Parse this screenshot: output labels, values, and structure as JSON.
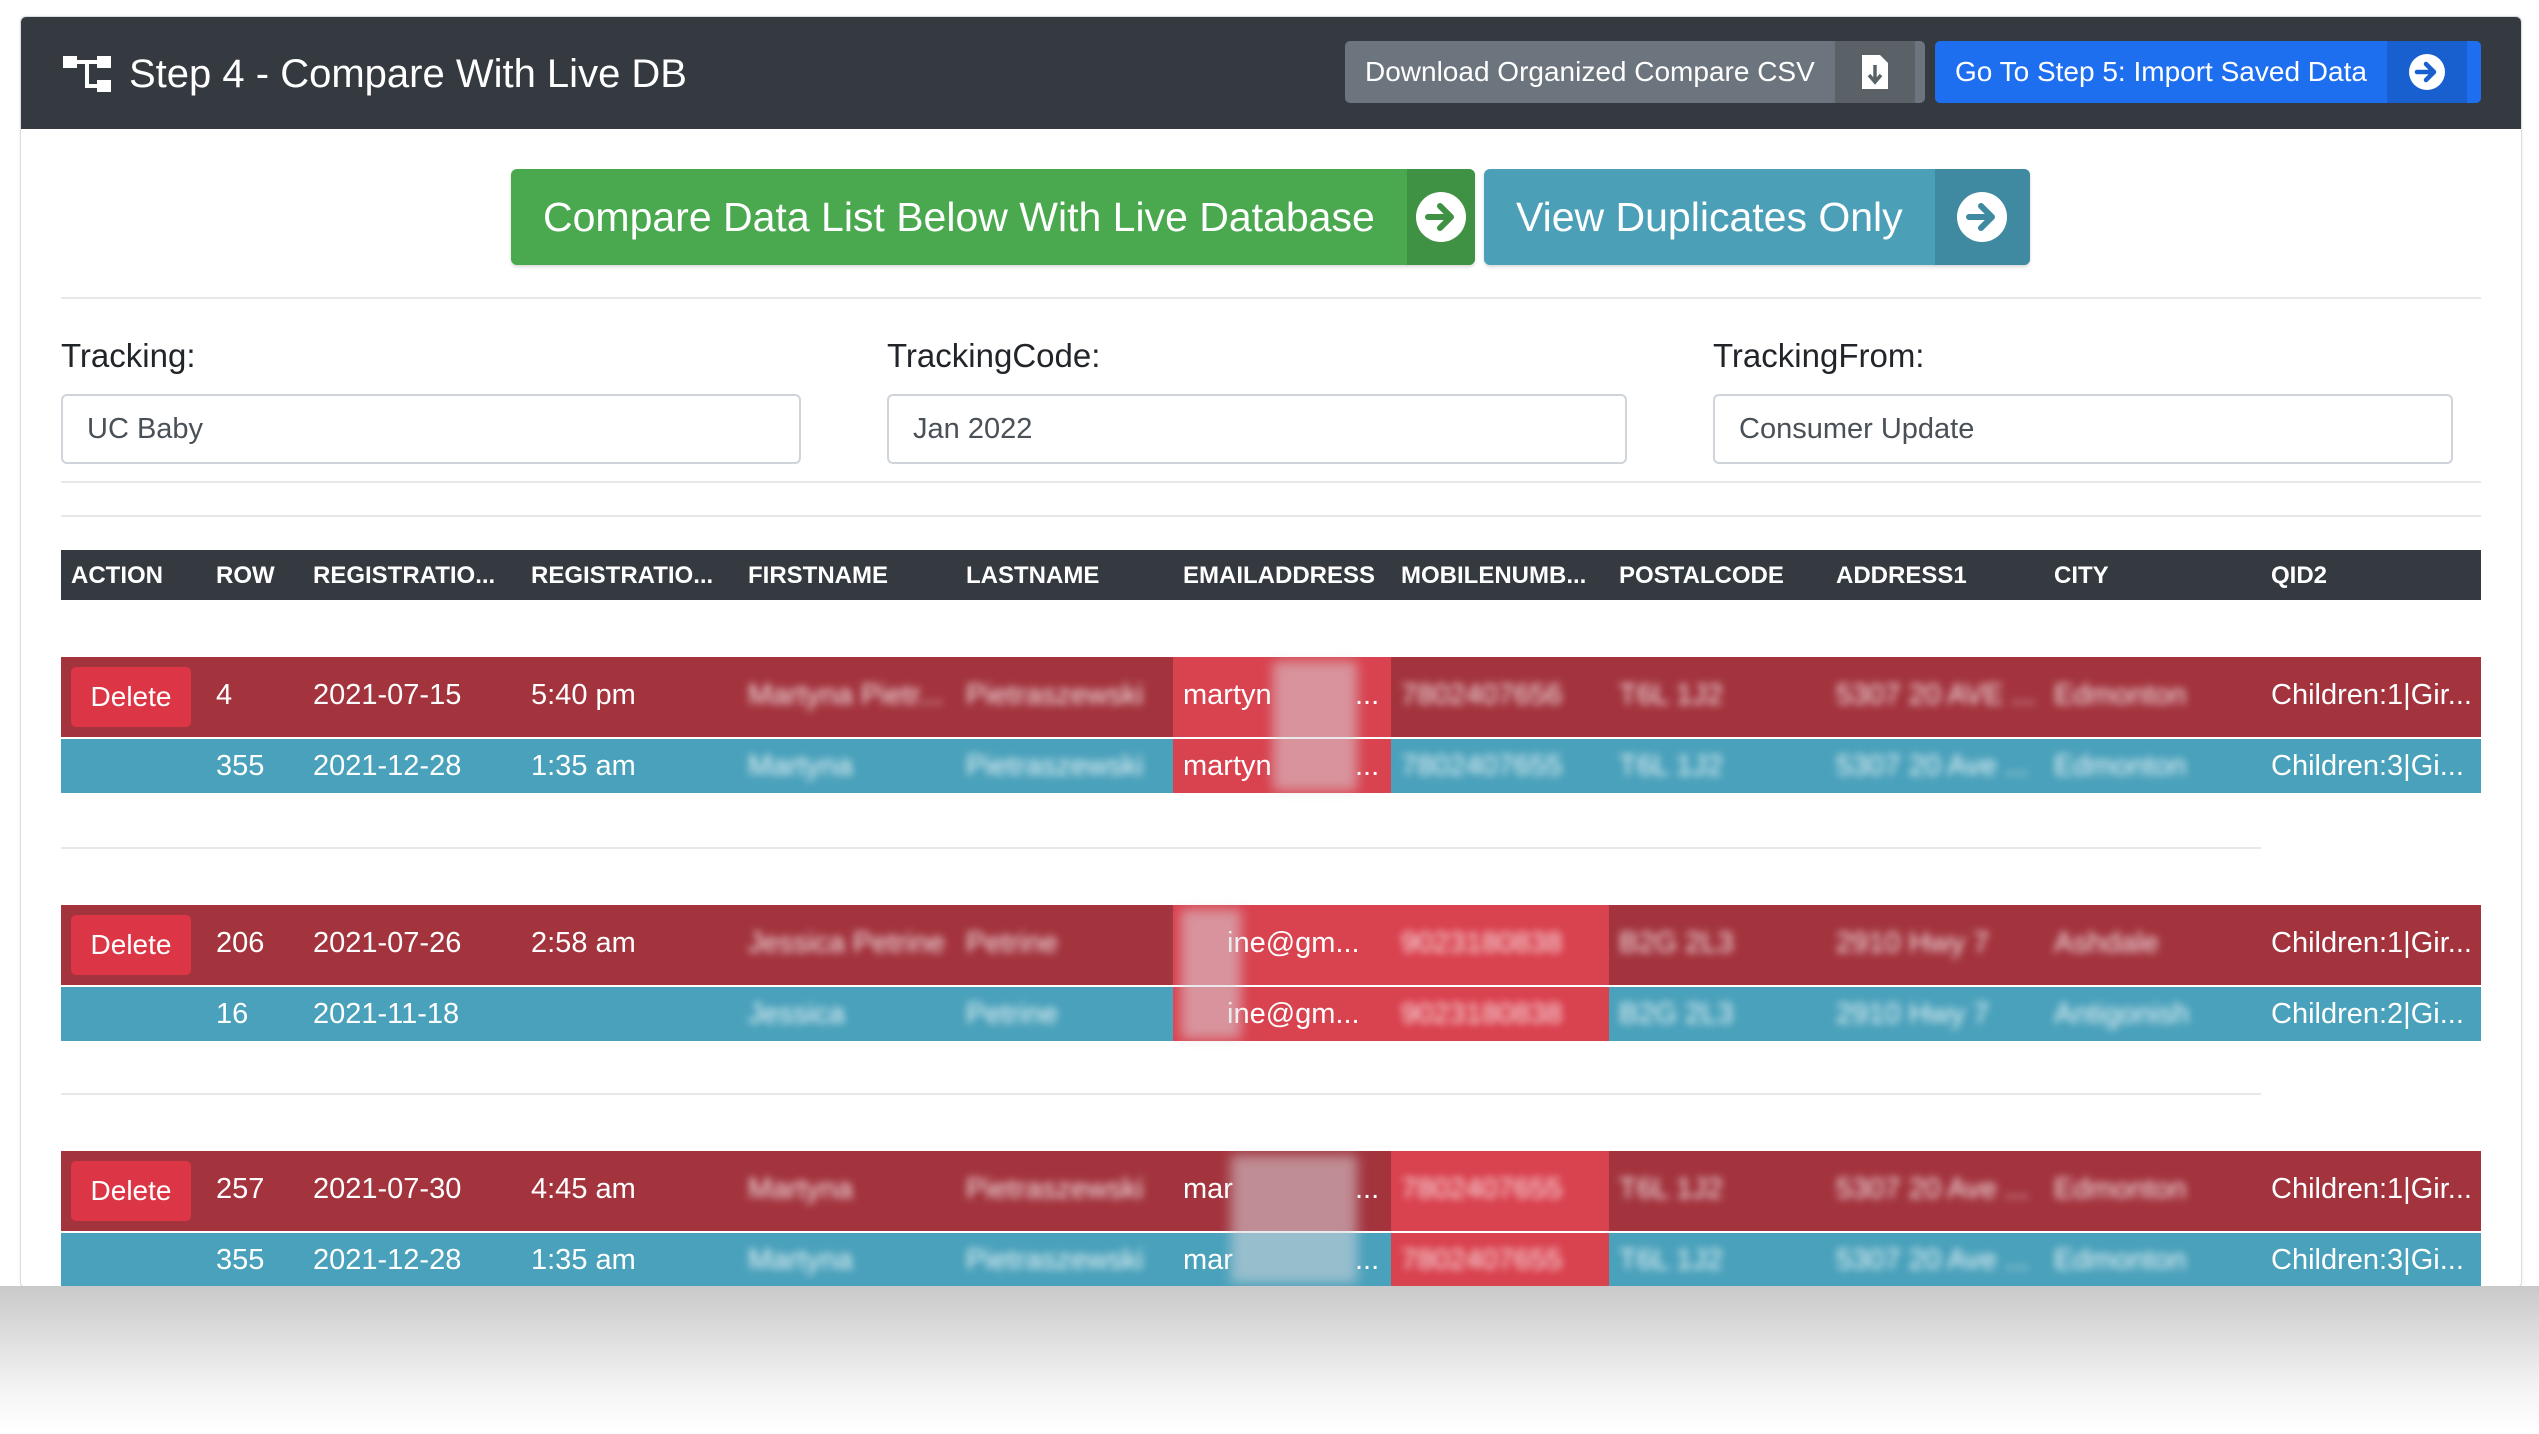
{
  "header": {
    "title": "Step 4 - Compare With Live DB",
    "csv_button": "Download Organized Compare CSV",
    "step5_button": "Go To Step 5: Import Saved Data"
  },
  "actions": {
    "compare_button": "Compare Data List Below With Live Database",
    "duplicates_button": "View Duplicates Only"
  },
  "fields": {
    "tracking_label": "Tracking:",
    "tracking_value": "UC Baby",
    "tracking_code_label": "TrackingCode:",
    "tracking_code_value": "Jan 2022",
    "tracking_from_label": "TrackingFrom:",
    "tracking_from_value": "Consumer Update"
  },
  "table": {
    "columns": [
      "ACTION",
      "ROW",
      "REGISTRATIO...",
      "REGISTRATIO...",
      "FIRSTNAME",
      "LASTNAME",
      "EMAILADDRESS",
      "MOBILENUMB...",
      "POSTALCODE",
      "ADDRESS1",
      "CITY",
      "QID2"
    ],
    "delete_label": "Delete",
    "groups": [
      {
        "primary": {
          "row": "4",
          "date": "2021-07-15",
          "time": "5:40 pm",
          "first": "Martyna Pietr...",
          "last": "Pietraszewski",
          "email": "martyn",
          "email_end": "...",
          "mobile": "7802407656",
          "postal": "T6L 1J2",
          "address": "5307 20 AVE ...",
          "city": "Edmonton",
          "qid2": "Children:1|Gir..."
        },
        "duplicate": {
          "row": "355",
          "date": "2021-12-28",
          "time": "1:35 am",
          "first": "Martyna",
          "last": "Pietraszewski",
          "email": "martyn",
          "email_end": "...",
          "mobile": "7802407655",
          "postal": "T6L 1J2",
          "address": "5307 20 Ave ...",
          "city": "Edmonton",
          "qid2": "Children:3|Gi..."
        }
      },
      {
        "primary": {
          "row": "206",
          "date": "2021-07-26",
          "time": "2:58 am",
          "first": "Jessica Petrine",
          "last": "Petrine",
          "email": "ine@gm...",
          "mobile": "9023180838",
          "postal": "B2G 2L3",
          "address": "2910 Hwy 7",
          "city": "Ashdale",
          "qid2": "Children:1|Gir..."
        },
        "duplicate": {
          "row": "16",
          "date": "2021-11-18",
          "time": "",
          "first": "Jessica",
          "last": "Petrine",
          "email": "ine@gm...",
          "mobile": "9023180838",
          "postal": "B2G 2L3",
          "address": "2910 Hwy 7",
          "city": "Antigonish",
          "qid2": "Children:2|Gi..."
        }
      },
      {
        "primary": {
          "row": "257",
          "date": "2021-07-30",
          "time": "4:45 am",
          "first": "Martyna",
          "last": "Pietraszewski",
          "email": "mar",
          "email_end": "...",
          "mobile": "7802407655",
          "postal": "T6L 1J2",
          "address": "5307 20 Ave ...",
          "city": "Edmonton",
          "qid2": "Children:1|Gir..."
        },
        "duplicate": {
          "row": "355",
          "date": "2021-12-28",
          "time": "1:35 am",
          "first": "Martyna",
          "last": "Pietraszewski",
          "email": "mar",
          "email_end": "...",
          "mobile": "7802407655",
          "postal": "T6L 1J2",
          "address": "5307 20 Ave ...",
          "city": "Edmonton",
          "qid2": "Children:3|Gi..."
        }
      }
    ]
  },
  "colors": {
    "header_bg": "#343a40",
    "compare_green": "#4aa84f",
    "duplicates_teal": "#4ba0b8",
    "step5_blue": "#1d6ff0",
    "row_red": "#a3343e",
    "row_blue": "#4aa1bb",
    "delete_red": "#dc3545"
  },
  "icons": {
    "title": "sitemap-icon",
    "csv": "file-download-icon",
    "step5": "arrow-circle-right-icon",
    "compare": "arrow-circle-right-icon",
    "duplicates": "arrow-circle-right-icon"
  }
}
